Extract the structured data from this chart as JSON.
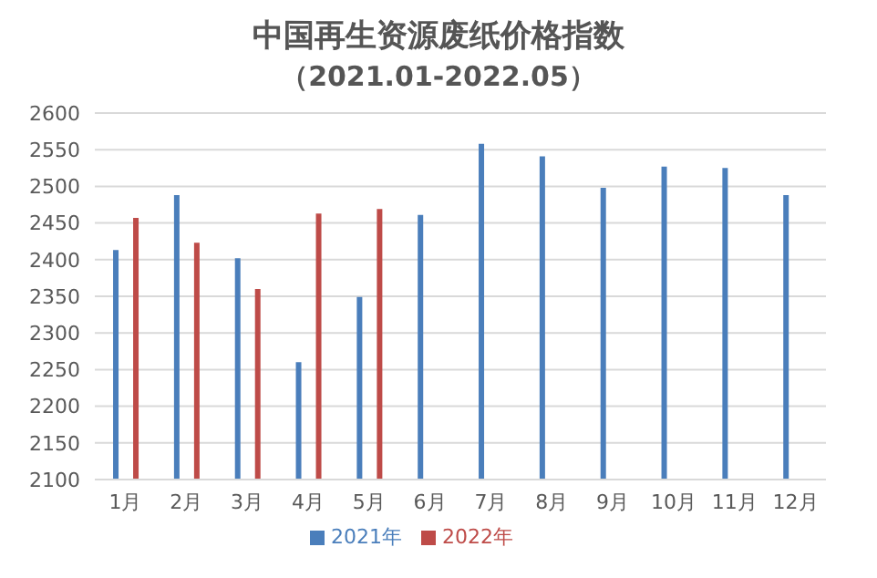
{
  "chart_data": {
    "type": "bar",
    "title": "中国再生资源废纸价格指数",
    "subtitle": "（2021.01-2022.05）",
    "categories": [
      "1月",
      "2月",
      "3月",
      "4月",
      "5月",
      "6月",
      "7月",
      "8月",
      "9月",
      "10月",
      "11月",
      "12月"
    ],
    "series": [
      {
        "name": "2021年",
        "color": "#4a7ebb",
        "values": [
          2413,
          2488,
          2402,
          2260,
          2349,
          2461,
          2558,
          2541,
          2498,
          2527,
          2525,
          2488
        ]
      },
      {
        "name": "2022年",
        "color": "#be4b48",
        "values": [
          2457,
          2423,
          2360,
          2463,
          2469,
          null,
          null,
          null,
          null,
          null,
          null,
          null
        ]
      }
    ],
    "ylim": [
      2100,
      2600
    ],
    "yticks": [
      2100,
      2150,
      2200,
      2250,
      2300,
      2350,
      2400,
      2450,
      2500,
      2550,
      2600
    ],
    "grid": "y",
    "legend": "bottom"
  }
}
